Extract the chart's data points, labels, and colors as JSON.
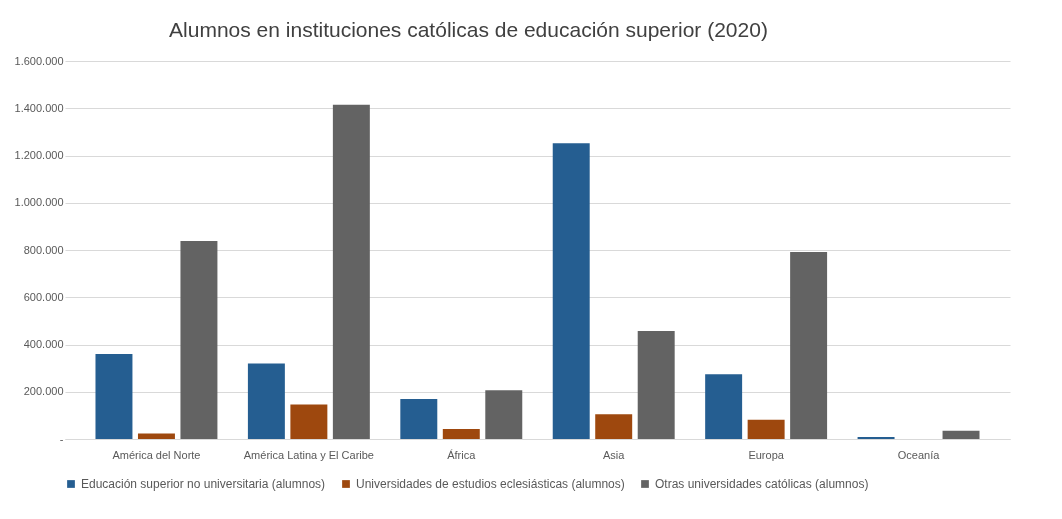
{
  "chart_data": {
    "type": "bar",
    "title": "Alumnos en instituciones católicas de educación superior (2020)",
    "categories": [
      "América del Norte",
      "América Latina y El Caribe",
      "África",
      "Asia",
      "Europa",
      "Oceanía"
    ],
    "series": [
      {
        "name": "Educación superior no universitaria (alumnos)",
        "color": "#255e91",
        "values": [
          360000,
          320000,
          169000,
          1252000,
          274000,
          8000
        ]
      },
      {
        "name": "Universidades de estudios eclesiásticas (alumnos)",
        "color": "#9e480e",
        "values": [
          23000,
          146000,
          42000,
          105000,
          82000,
          null
        ]
      },
      {
        "name": "Otras universidades católicas (alumnos)",
        "color": "#636363",
        "values": [
          838000,
          1415000,
          206000,
          457000,
          792000,
          35000
        ]
      }
    ],
    "ylim": [
      0,
      1600000
    ],
    "yticks": [
      {
        "value": 0,
        "label": "-"
      },
      {
        "value": 200000,
        "label": "200.000"
      },
      {
        "value": 400000,
        "label": "400.000"
      },
      {
        "value": 600000,
        "label": "600.000"
      },
      {
        "value": 800000,
        "label": "800.000"
      },
      {
        "value": 1000000,
        "label": "1.000.000"
      },
      {
        "value": 1200000,
        "label": "1.200.000"
      },
      {
        "value": 1400000,
        "label": "1.400.000"
      },
      {
        "value": 1600000,
        "label": "1.600.000"
      }
    ],
    "grid": "y",
    "legend": "bottom"
  }
}
